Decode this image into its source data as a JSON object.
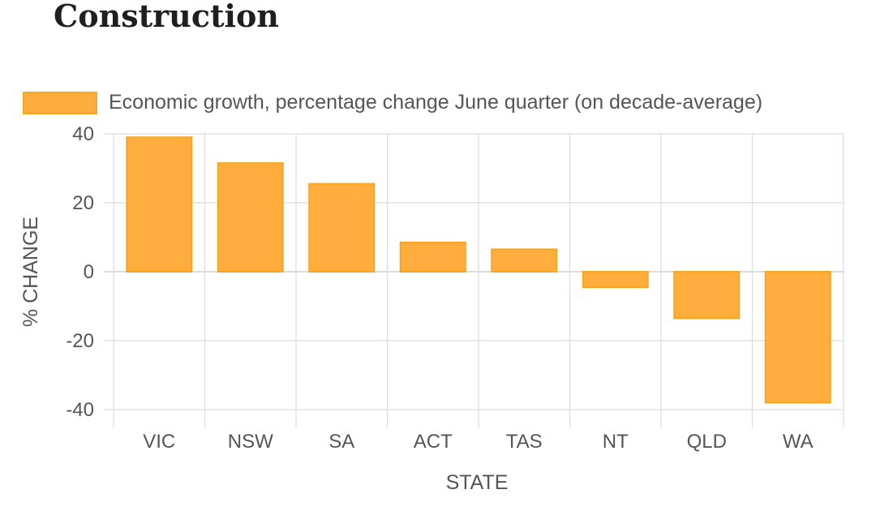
{
  "page": {
    "title": "Construction"
  },
  "colors": {
    "bar_fill": "#ffae3d",
    "bar_stroke": "#f5a623",
    "grid": "#dcdcdc",
    "text": "#555555"
  },
  "chart_data": {
    "type": "bar",
    "title": "Construction",
    "categories": [
      "VIC",
      "NSW",
      "SA",
      "ACT",
      "TAS",
      "NT",
      "QLD",
      "WA"
    ],
    "series": [
      {
        "name": "Economic growth, percentage change June quarter (on decade-average)",
        "values": [
          39,
          31.5,
          25.5,
          8.5,
          6.5,
          -4.5,
          -13.5,
          -38
        ]
      }
    ],
    "xlabel": "STATE",
    "ylabel": "% CHANGE",
    "ylim": [
      -40,
      40
    ],
    "yticks": [
      40,
      20,
      0,
      -20,
      -40
    ],
    "ytick_labels": [
      "40",
      "20",
      "0",
      "-20",
      "-40"
    ],
    "grid": true,
    "legend_position": "top"
  }
}
